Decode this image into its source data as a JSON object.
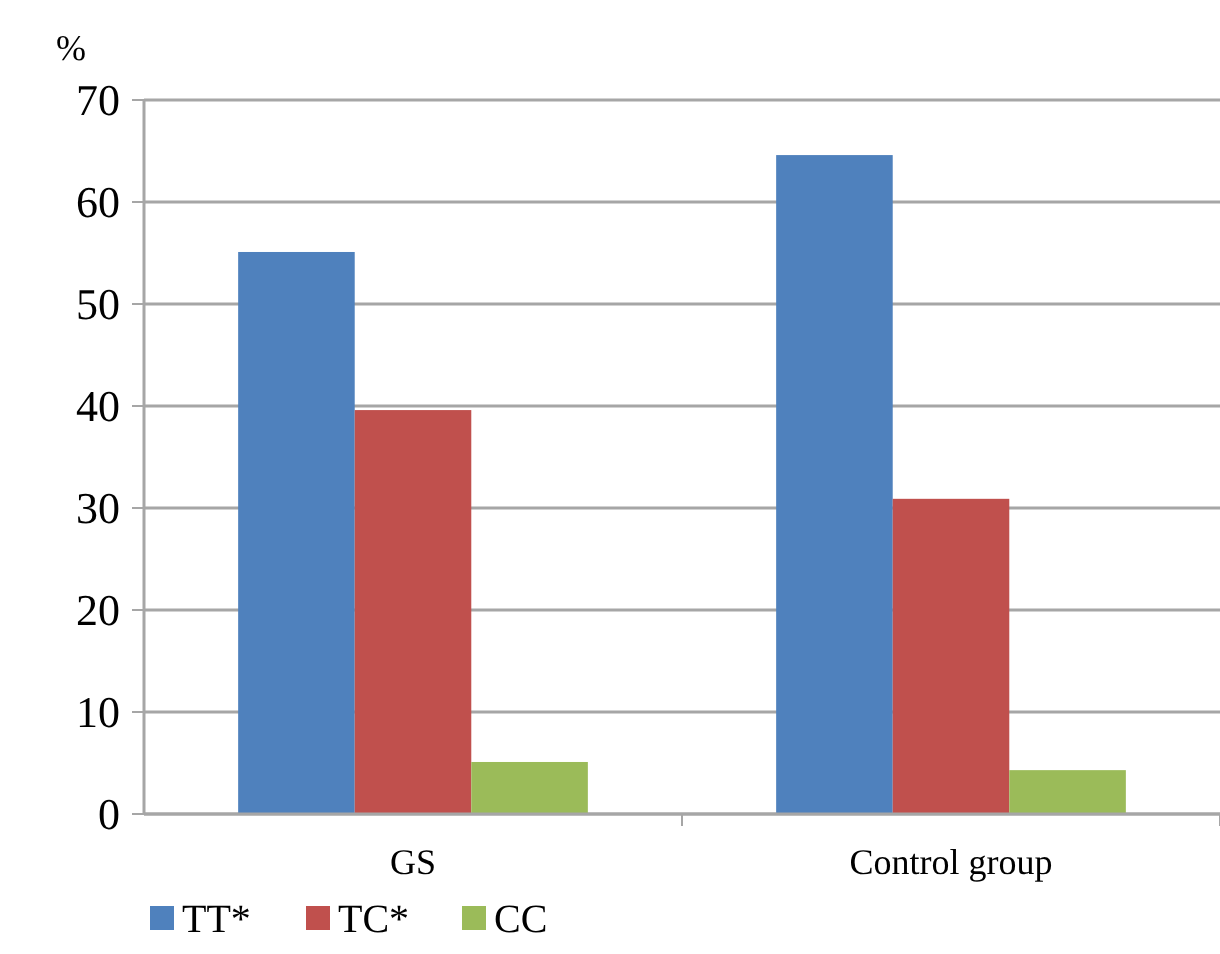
{
  "chart_data": {
    "type": "bar",
    "ylabel": "%",
    "categories": [
      "GS",
      "Control group"
    ],
    "series": [
      {
        "name": "TT*",
        "color": "#4f81bd",
        "values": [
          55.1,
          64.6
        ]
      },
      {
        "name": "TC*",
        "color": "#c0504d",
        "values": [
          39.6,
          30.9
        ]
      },
      {
        "name": "CC",
        "color": "#9bbb59",
        "values": [
          5.1,
          4.3
        ]
      }
    ],
    "ylim": [
      0,
      70
    ],
    "yticks": [
      0,
      10,
      20,
      30,
      40,
      50,
      60,
      70
    ],
    "grid": "y",
    "legend": "bottom left"
  }
}
